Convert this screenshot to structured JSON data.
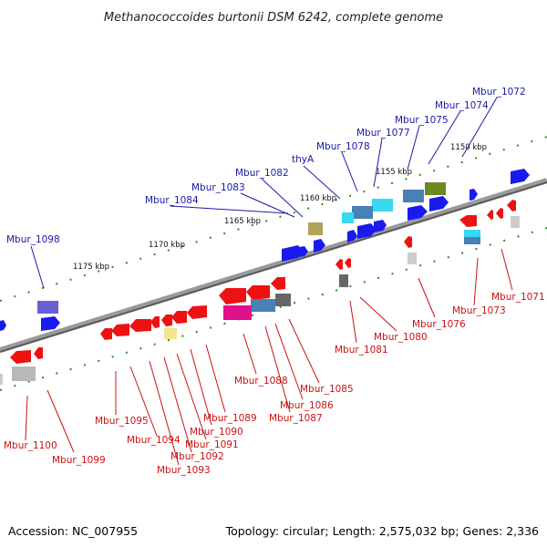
{
  "title": "Methanococcoides burtonii DSM 6242, complete genome",
  "footer": {
    "accession": "Accession: NC_007955",
    "summary": "Topology: circular; Length: 2,575,032 bp; Genes: 2,336"
  },
  "colors": {
    "backbone": "#7f7f7f",
    "forward_label": "#1a1aa8",
    "reverse_label": "#cc1111",
    "tick": "#2a8a2a"
  },
  "kbp_ticks": [
    "1150 kbp",
    "1155 kbp",
    "1160 kbp",
    "1165 kbp",
    "1170 kbp",
    "1175 kbp"
  ],
  "forward_genes": [
    "Mbur_1072",
    "Mbur_1074",
    "Mbur_1075",
    "Mbur_1077",
    "Mbur_1078",
    "thyA",
    "Mbur_1082",
    "Mbur_1083",
    "Mbur_1084",
    "Mbur_1098"
  ],
  "reverse_genes": [
    "Mbur_1071",
    "Mbur_1073",
    "Mbur_1076",
    "Mbur_1080",
    "Mbur_1081",
    "Mbur_1085",
    "Mbur_1086",
    "Mbur_1087",
    "Mbur_1088",
    "Mbur_1089",
    "Mbur_1090",
    "Mbur_1091",
    "Mbur_1092",
    "Mbur_1093",
    "Mbur_1094",
    "Mbur_1095",
    "Mbur_1099",
    "Mbur_1100"
  ]
}
